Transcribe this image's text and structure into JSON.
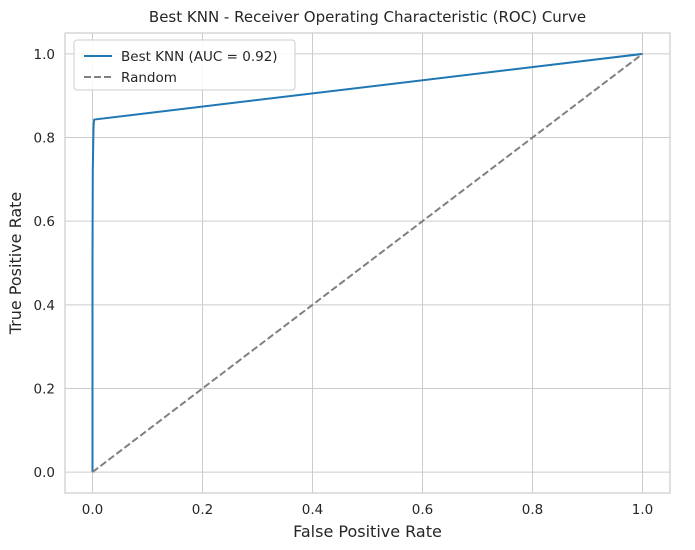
{
  "chart_data": {
    "type": "line",
    "title": "Best KNN - Receiver Operating Characteristic (ROC) Curve",
    "xlabel": "False Positive Rate",
    "ylabel": "True Positive Rate",
    "xlim": [
      -0.05,
      1.05
    ],
    "ylim": [
      -0.05,
      1.05
    ],
    "xticks": [
      0.0,
      0.2,
      0.4,
      0.6,
      0.8,
      1.0
    ],
    "yticks": [
      0.0,
      0.2,
      0.4,
      0.6,
      0.8,
      1.0
    ],
    "xtick_labels": [
      "0.0",
      "0.2",
      "0.4",
      "0.6",
      "0.8",
      "1.0"
    ],
    "ytick_labels": [
      "0.0",
      "0.2",
      "0.4",
      "0.6",
      "0.8",
      "1.0"
    ],
    "grid": true,
    "legend_position": "top-left",
    "series": [
      {
        "name": "Best KNN (AUC = 0.92)",
        "color": "#1f77b4",
        "style": "solid",
        "x": [
          0.0,
          0.0,
          0.0005,
          0.001,
          0.0015,
          0.002,
          0.003,
          1.0
        ],
        "y": [
          0.0,
          0.5,
          0.72,
          0.76,
          0.8,
          0.83,
          0.843,
          1.0
        ]
      },
      {
        "name": "Random",
        "color": "#808080",
        "style": "dashed",
        "x": [
          0.0,
          1.0
        ],
        "y": [
          0.0,
          1.0
        ]
      }
    ]
  }
}
